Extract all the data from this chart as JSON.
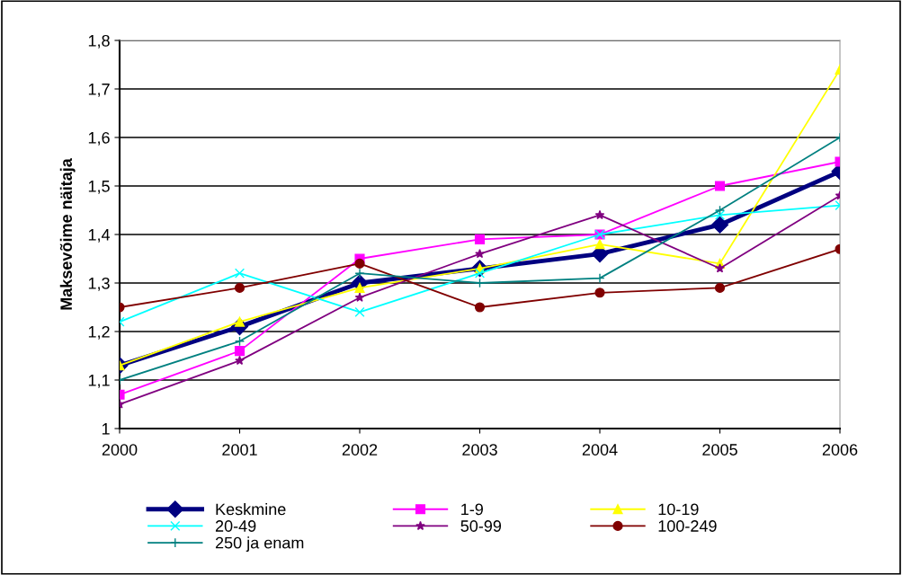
{
  "chart_data": {
    "type": "line",
    "ylabel": "Maksevõime näitaja",
    "x": [
      2000,
      2001,
      2002,
      2003,
      2004,
      2005,
      2006
    ],
    "xlim": [
      2000,
      2006
    ],
    "xticks": [
      2000,
      2001,
      2002,
      2003,
      2004,
      2005,
      2006
    ],
    "ylim": [
      1,
      1.8
    ],
    "yticks": [
      {
        "value": 1,
        "label": "1"
      },
      {
        "value": 1.1,
        "label": "1,1"
      },
      {
        "value": 1.2,
        "label": "1,2"
      },
      {
        "value": 1.3,
        "label": "1,3"
      },
      {
        "value": 1.4,
        "label": "1,4"
      },
      {
        "value": 1.5,
        "label": "1,5"
      },
      {
        "value": 1.6,
        "label": "1,6"
      },
      {
        "value": 1.7,
        "label": "1,7"
      },
      {
        "value": 1.8,
        "label": "1,8"
      }
    ],
    "grid": "y",
    "legend": "bottom",
    "series": [
      {
        "name": "Keskmine",
        "color": "#000080",
        "marker": "diamond",
        "values": [
          1.13,
          1.21,
          1.3,
          1.33,
          1.36,
          1.42,
          1.53
        ]
      },
      {
        "name": "1-9",
        "color": "#ff00ff",
        "marker": "square",
        "values": [
          1.07,
          1.16,
          1.35,
          1.39,
          1.4,
          1.5,
          1.55
        ]
      },
      {
        "name": "10-19",
        "color": "#ffff00",
        "marker": "triangle",
        "values": [
          1.13,
          1.22,
          1.29,
          1.33,
          1.38,
          1.34,
          1.74
        ]
      },
      {
        "name": "20-49",
        "color": "#00ffff",
        "marker": "cross",
        "values": [
          1.22,
          1.32,
          1.24,
          1.32,
          1.4,
          1.44,
          1.46
        ]
      },
      {
        "name": "50-99",
        "color": "#800080",
        "marker": "star",
        "values": [
          1.05,
          1.14,
          1.27,
          1.36,
          1.44,
          1.33,
          1.48
        ]
      },
      {
        "name": "100-249",
        "color": "#800000",
        "marker": "circle",
        "values": [
          1.25,
          1.29,
          1.34,
          1.25,
          1.28,
          1.29,
          1.37
        ]
      },
      {
        "name": "250 ja enam",
        "color": "#008080",
        "marker": "plus",
        "values": [
          1.1,
          1.18,
          1.32,
          1.3,
          1.31,
          1.45,
          1.6
        ]
      }
    ]
  }
}
